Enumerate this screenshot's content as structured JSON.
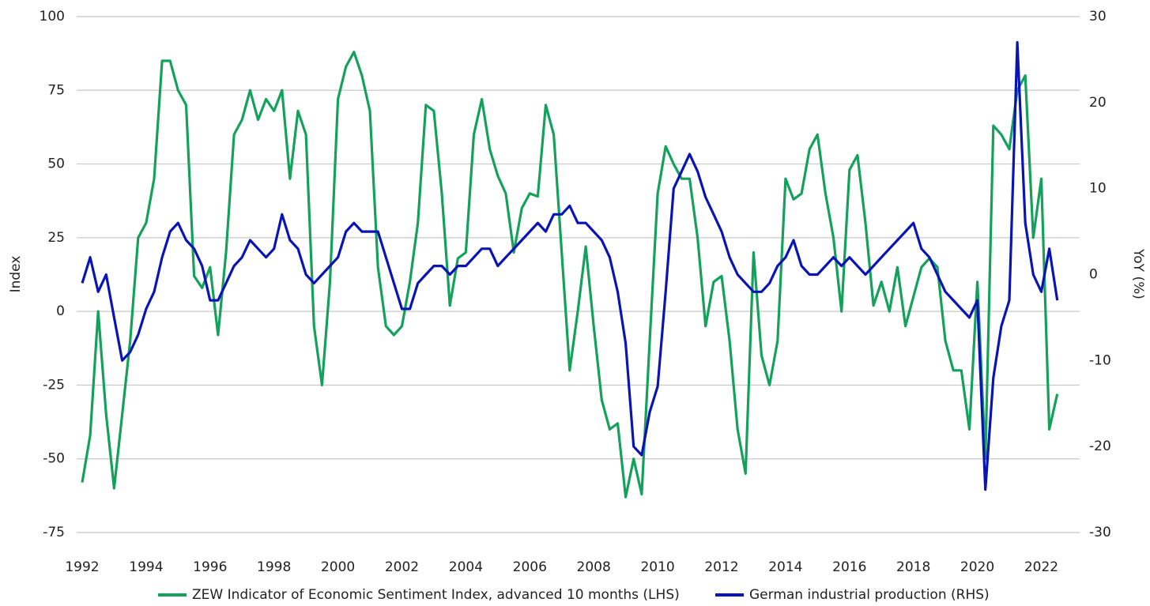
{
  "chart_data": {
    "type": "line",
    "y_label": "Index",
    "y2_label": "YoY (%)",
    "x": [
      1992,
      1992.25,
      1992.5,
      1992.75,
      1993,
      1993.25,
      1993.5,
      1993.75,
      1994,
      1994.25,
      1994.5,
      1994.75,
      1995,
      1995.25,
      1995.5,
      1995.75,
      1996,
      1996.25,
      1996.5,
      1996.75,
      1997,
      1997.25,
      1997.5,
      1997.75,
      1998,
      1998.25,
      1998.5,
      1998.75,
      1999,
      1999.25,
      1999.5,
      1999.75,
      2000,
      2000.25,
      2000.5,
      2000.75,
      2001,
      2001.25,
      2001.5,
      2001.75,
      2002,
      2002.25,
      2002.5,
      2002.75,
      2003,
      2003.25,
      2003.5,
      2003.75,
      2004,
      2004.25,
      2004.5,
      2004.75,
      2005,
      2005.25,
      2005.5,
      2005.75,
      2006,
      2006.25,
      2006.5,
      2006.75,
      2007,
      2007.25,
      2007.5,
      2007.75,
      2008,
      2008.25,
      2008.5,
      2008.75,
      2009,
      2009.25,
      2009.5,
      2009.75,
      2010,
      2010.25,
      2010.5,
      2010.75,
      2011,
      2011.25,
      2011.5,
      2011.75,
      2012,
      2012.25,
      2012.5,
      2012.75,
      2013,
      2013.25,
      2013.5,
      2013.75,
      2014,
      2014.25,
      2014.5,
      2014.75,
      2015,
      2015.25,
      2015.5,
      2015.75,
      2016,
      2016.25,
      2016.5,
      2016.75,
      2017,
      2017.25,
      2017.5,
      2017.75,
      2018,
      2018.25,
      2018.5,
      2018.75,
      2019,
      2019.25,
      2019.5,
      2019.75,
      2020,
      2020.25,
      2020.5,
      2020.75,
      2021,
      2021.25,
      2021.5,
      2021.75,
      2022,
      2022.25,
      2022.5
    ],
    "series": [
      {
        "name": "ZEW Indicator of Economic Sentiment Index, advanced 10 months (LHS)",
        "color": "#13a15b",
        "axis": "y",
        "values": [
          -58,
          -42,
          0,
          -35,
          -60,
          -35,
          -10,
          25,
          30,
          45,
          85,
          85,
          75,
          70,
          12,
          8,
          15,
          -8,
          20,
          60,
          65,
          75,
          65,
          72,
          68,
          75,
          45,
          68,
          60,
          -5,
          -25,
          10,
          72,
          83,
          88,
          80,
          68,
          15,
          -5,
          -8,
          -5,
          10,
          30,
          70,
          68,
          40,
          2,
          18,
          20,
          60,
          72,
          55,
          46,
          40,
          20,
          35,
          40,
          39,
          70,
          60,
          20,
          -20,
          0,
          22,
          -5,
          -30,
          -40,
          -38,
          -63,
          -50,
          -62,
          -10,
          40,
          56,
          50,
          45,
          45,
          25,
          -5,
          10,
          12,
          -10,
          -40,
          -55,
          20,
          -15,
          -25,
          -10,
          45,
          38,
          40,
          55,
          60,
          40,
          25,
          0,
          48,
          53,
          30,
          2,
          10,
          0,
          15,
          -5,
          5,
          15,
          18,
          15,
          -10,
          -20,
          -20,
          -40,
          10,
          -50,
          63,
          60,
          55,
          75,
          80,
          25,
          45,
          -40,
          -28
        ]
      },
      {
        "name": "German industrial production (RHS)",
        "color": "#0a14b4",
        "axis": "y2",
        "values": [
          -1,
          2,
          -2,
          0,
          -5,
          -10,
          -9,
          -7,
          -4,
          -2,
          2,
          5,
          6,
          4,
          3,
          1,
          -3,
          -3,
          -1,
          1,
          2,
          4,
          3,
          2,
          3,
          7,
          4,
          3,
          0,
          -1,
          0,
          1,
          2,
          5,
          6,
          5,
          5,
          5,
          2,
          -1,
          -4,
          -4,
          -1,
          0,
          1,
          1,
          0,
          1,
          1,
          2,
          3,
          3,
          1,
          2,
          3,
          4,
          5,
          6,
          5,
          7,
          7,
          8,
          6,
          6,
          5,
          4,
          2,
          -2,
          -8,
          -20,
          -21,
          -16,
          -13,
          -2,
          10,
          12,
          14,
          12,
          9,
          7,
          5,
          2,
          0,
          -1,
          -2,
          -2,
          -1,
          1,
          2,
          4,
          1,
          0,
          0,
          1,
          2,
          1,
          2,
          1,
          0,
          1,
          2,
          3,
          4,
          5,
          6,
          3,
          2,
          0,
          -2,
          -3,
          -4,
          -5,
          -3,
          -25,
          -12,
          -6,
          -3,
          27,
          6,
          0,
          -2,
          3,
          -3
        ]
      }
    ],
    "xlim": [
      1992,
      2023.2
    ],
    "xticks": [
      1992,
      1994,
      1996,
      1998,
      2000,
      2002,
      2004,
      2006,
      2008,
      2010,
      2012,
      2014,
      2016,
      2018,
      2020,
      2022
    ],
    "ylim": [
      -75,
      100
    ],
    "yticks": [
      100,
      75,
      50,
      25,
      0,
      -25,
      -50,
      -75
    ],
    "y2lim": [
      -30,
      30
    ],
    "y2ticks": [
      30,
      20,
      10,
      0,
      -10,
      -20,
      -30
    ],
    "grid": true,
    "legend": "bottom"
  }
}
